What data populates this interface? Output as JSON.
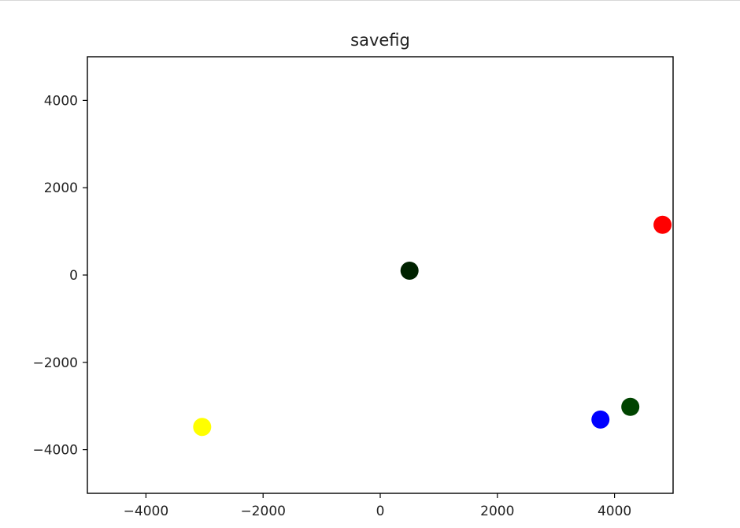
{
  "chart_data": {
    "type": "scatter",
    "title": "savefig",
    "xlabel": "",
    "ylabel": "",
    "xlim": [
      -5000,
      5000
    ],
    "ylim": [
      -5000,
      5000
    ],
    "grid": false,
    "xticks": [
      -4000,
      -2000,
      0,
      2000,
      4000
    ],
    "yticks": [
      -4000,
      -2000,
      0,
      2000,
      4000
    ],
    "points": [
      {
        "x": 4820,
        "y": 1150,
        "color": "#ff0000"
      },
      {
        "x": 500,
        "y": 100,
        "color": "#002200"
      },
      {
        "x": -3040,
        "y": -3480,
        "color": "#ffff00"
      },
      {
        "x": 3760,
        "y": -3310,
        "color": "#0000ff"
      },
      {
        "x": 4270,
        "y": -3020,
        "color": "#004400"
      }
    ]
  }
}
